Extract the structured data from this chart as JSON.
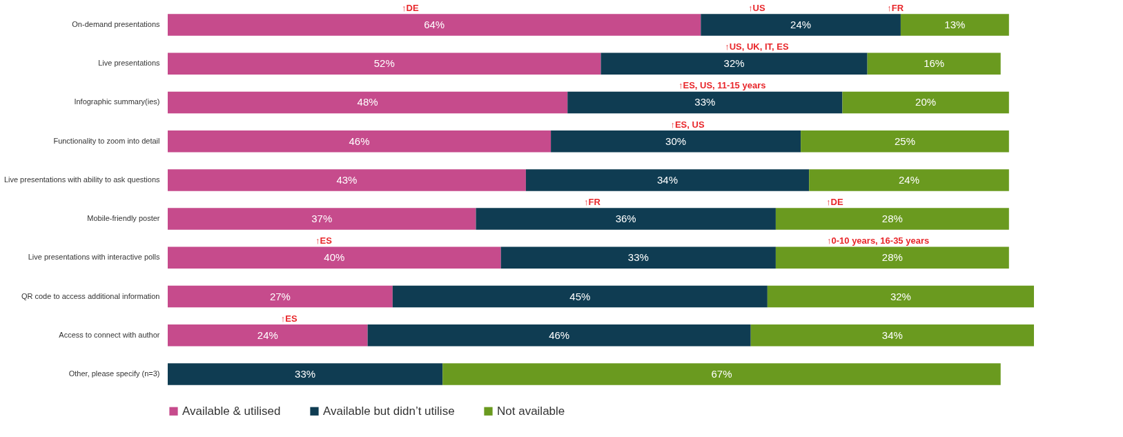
{
  "chart_data": {
    "type": "bar",
    "orientation": "horizontal",
    "stacked": true,
    "legend": "bottom",
    "categories": [
      "On-demand presentations",
      "Live presentations",
      "Infographic summary(ies)",
      "Functionality to zoom into detail",
      "Live presentations with ability to ask questions",
      "Mobile-friendly poster",
      "Live presentations with interactive polls",
      "QR code to access additional information",
      "Access to connect with author",
      "Other, please specify (n=3)"
    ],
    "series": [
      {
        "name": "Available & utilised",
        "color": "#c64b8c",
        "values": [
          64,
          52,
          48,
          46,
          43,
          37,
          40,
          27,
          24,
          null
        ],
        "value_labels": [
          "64%",
          "52%",
          "48%",
          "46%",
          "43%",
          "37%",
          "40%",
          "27%",
          "24%",
          null
        ]
      },
      {
        "name": "Available but didn’t utilise",
        "color": "#0f3c52",
        "values": [
          24,
          32,
          33,
          30,
          34,
          36,
          33,
          45,
          46,
          33
        ],
        "value_labels": [
          "24%",
          "32%",
          "33%",
          "30%",
          "34%",
          "36%",
          "33%",
          "45%",
          "46%",
          "33%"
        ]
      },
      {
        "name": "Not available",
        "color": "#6a9a1f",
        "values": [
          13,
          16,
          20,
          25,
          24,
          28,
          28,
          32,
          34,
          67
        ],
        "value_labels": [
          "13%",
          "16%",
          "20%",
          "25%",
          "24%",
          "28%",
          "28%",
          "32%",
          "34%",
          "67%"
        ]
      }
    ],
    "annotations": [
      "↑DE",
      "↑US",
      "↑FR",
      "↑US, UK, IT, ES",
      "↑ES, US, 11-15 years",
      "↑ES, US",
      "↑FR",
      "↑DE",
      "↑ES",
      "↑0-10 years, 16-35 years",
      "↑ES"
    ]
  }
}
